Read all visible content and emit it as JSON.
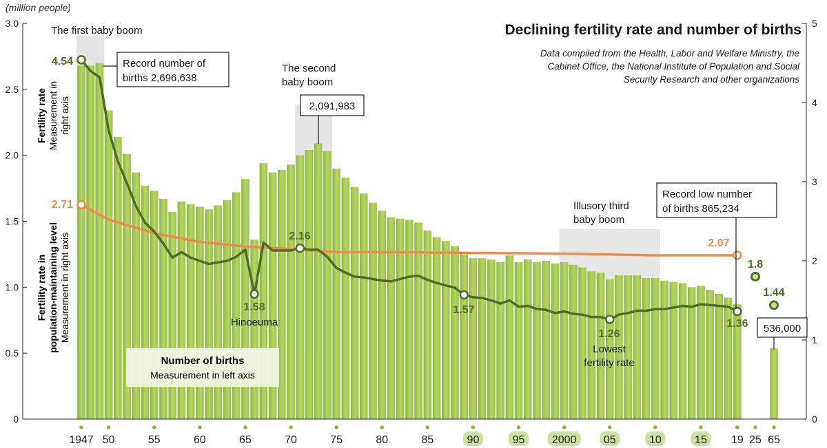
{
  "chart_data": {
    "type": "bar",
    "title": "Declining fertility rate and number of births",
    "source": "Data compiled from the Health, Labor and Welfare Ministry, the Cabinet Office, the National Institute of Population and Social Security Research and other organizations",
    "left_axis": {
      "unit": "(million people)",
      "ticks": [
        "0",
        "0.5",
        "1.0",
        "1.5",
        "2.0",
        "2.5",
        "3.0"
      ],
      "range": [
        0,
        3.0
      ]
    },
    "right_axis": {
      "ticks": [
        "0",
        "1",
        "2",
        "3",
        "4",
        "5"
      ],
      "range": [
        0,
        5
      ]
    },
    "left_labels": {
      "fertility_bold": "Fertility rate",
      "fertility_sub1": "Measurement in",
      "fertility_sub2": "right axis",
      "maint_bold1": "Fertility rate in",
      "maint_bold2": "population-maintaining level",
      "maint_sub": "Measurement in right axis"
    },
    "x_tick_labels": [
      {
        "year": 1947,
        "label": "1947",
        "highlight": false
      },
      {
        "year": 1950,
        "label": "50",
        "highlight": false
      },
      {
        "year": 1955,
        "label": "55",
        "highlight": false
      },
      {
        "year": 1960,
        "label": "60",
        "highlight": false
      },
      {
        "year": 1965,
        "label": "65",
        "highlight": false
      },
      {
        "year": 1970,
        "label": "70",
        "highlight": false
      },
      {
        "year": 1975,
        "label": "75",
        "highlight": false
      },
      {
        "year": 1980,
        "label": "80",
        "highlight": false
      },
      {
        "year": 1985,
        "label": "85",
        "highlight": false
      },
      {
        "year": 1990,
        "label": "90",
        "highlight": true
      },
      {
        "year": 1995,
        "label": "95",
        "highlight": true
      },
      {
        "year": 2000,
        "label": "2000",
        "highlight": true
      },
      {
        "year": 2005,
        "label": "05",
        "highlight": true
      },
      {
        "year": 2010,
        "label": "10",
        "highlight": true
      },
      {
        "year": 2015,
        "label": "15",
        "highlight": true
      },
      {
        "year": 2019,
        "label": "19",
        "highlight": false
      },
      {
        "year": 2025,
        "label": "25",
        "highlight": false
      },
      {
        "year": 2065,
        "label": "65",
        "highlight": false
      }
    ],
    "births": {
      "name": "Number of births",
      "subtitle": "Measurement in left axis",
      "years": [
        1947,
        1948,
        1949,
        1950,
        1951,
        1952,
        1953,
        1954,
        1955,
        1956,
        1957,
        1958,
        1959,
        1960,
        1961,
        1962,
        1963,
        1964,
        1965,
        1966,
        1967,
        1968,
        1969,
        1970,
        1971,
        1972,
        1973,
        1974,
        1975,
        1976,
        1977,
        1978,
        1979,
        1980,
        1981,
        1982,
        1983,
        1984,
        1985,
        1986,
        1987,
        1988,
        1989,
        1990,
        1991,
        1992,
        1993,
        1994,
        1995,
        1996,
        1997,
        1998,
        1999,
        2000,
        2001,
        2002,
        2003,
        2004,
        2005,
        2006,
        2007,
        2008,
        2009,
        2010,
        2011,
        2012,
        2013,
        2014,
        2015,
        2016,
        2017,
        2018,
        2019
      ],
      "values": [
        2.68,
        2.68,
        2.7,
        2.34,
        2.14,
        2.01,
        1.87,
        1.77,
        1.73,
        1.67,
        1.57,
        1.65,
        1.63,
        1.61,
        1.59,
        1.62,
        1.66,
        1.72,
        1.82,
        1.36,
        1.94,
        1.87,
        1.89,
        1.93,
        2.0,
        2.04,
        2.09,
        2.03,
        1.9,
        1.83,
        1.76,
        1.71,
        1.64,
        1.58,
        1.53,
        1.52,
        1.51,
        1.49,
        1.43,
        1.38,
        1.35,
        1.31,
        1.25,
        1.22,
        1.22,
        1.21,
        1.19,
        1.24,
        1.19,
        1.21,
        1.19,
        1.2,
        1.18,
        1.19,
        1.17,
        1.15,
        1.12,
        1.11,
        1.06,
        1.09,
        1.09,
        1.09,
        1.07,
        1.07,
        1.05,
        1.04,
        1.03,
        1.0,
        1.01,
        0.98,
        0.95,
        0.92,
        0.87
      ],
      "projection": {
        "year": 2065,
        "value": 0.536
      }
    },
    "fertility_rate": {
      "name": "Fertility rate",
      "years": [
        1947,
        1948,
        1949,
        1950,
        1951,
        1952,
        1953,
        1954,
        1955,
        1956,
        1957,
        1958,
        1959,
        1960,
        1961,
        1962,
        1963,
        1964,
        1965,
        1966,
        1967,
        1968,
        1969,
        1970,
        1971,
        1972,
        1973,
        1974,
        1975,
        1976,
        1977,
        1978,
        1979,
        1980,
        1981,
        1982,
        1983,
        1984,
        1985,
        1986,
        1987,
        1988,
        1989,
        1990,
        1991,
        1992,
        1993,
        1994,
        1995,
        1996,
        1997,
        1998,
        1999,
        2000,
        2001,
        2002,
        2003,
        2004,
        2005,
        2006,
        2007,
        2008,
        2009,
        2010,
        2011,
        2012,
        2013,
        2014,
        2015,
        2016,
        2017,
        2018,
        2019
      ],
      "values": [
        4.54,
        4.4,
        4.32,
        3.65,
        3.26,
        2.98,
        2.69,
        2.48,
        2.37,
        2.22,
        2.04,
        2.11,
        2.04,
        2.0,
        1.96,
        1.98,
        2.0,
        2.05,
        2.14,
        1.58,
        2.23,
        2.13,
        2.13,
        2.13,
        2.16,
        2.14,
        2.14,
        2.05,
        1.91,
        1.85,
        1.8,
        1.79,
        1.77,
        1.75,
        1.74,
        1.77,
        1.8,
        1.81,
        1.76,
        1.72,
        1.69,
        1.66,
        1.57,
        1.54,
        1.53,
        1.5,
        1.46,
        1.5,
        1.42,
        1.43,
        1.39,
        1.38,
        1.34,
        1.36,
        1.33,
        1.32,
        1.29,
        1.29,
        1.26,
        1.32,
        1.34,
        1.37,
        1.37,
        1.39,
        1.39,
        1.41,
        1.43,
        1.42,
        1.45,
        1.44,
        1.43,
        1.42,
        1.36
      ],
      "projections": [
        {
          "year": 2025,
          "value": 1.8
        },
        {
          "year": 2065,
          "value": 1.44
        }
      ]
    },
    "maintenance_rate": {
      "name": "Fertility rate in population-maintaining level",
      "years": [
        1947,
        1950,
        1955,
        1960,
        1965,
        1970,
        1975,
        1980,
        1990,
        2000,
        2010,
        2019
      ],
      "values": [
        2.71,
        2.52,
        2.35,
        2.24,
        2.18,
        2.15,
        2.11,
        2.11,
        2.1,
        2.09,
        2.07,
        2.07
      ]
    },
    "annotations": {
      "first_boom": "The first baby boom",
      "record_births": [
        "Record number of",
        "births 2,696,638"
      ],
      "second_boom": [
        "The second",
        "baby boom"
      ],
      "second_boom_value": "2,091,983",
      "illusory": [
        "Illusory third",
        "baby boom"
      ],
      "record_low": [
        "Record low number",
        "of births 865,234"
      ],
      "proj_births": "536,000",
      "hinoeuma": "Hinoeuma",
      "lowest": [
        "Lowest",
        "fertility rate"
      ],
      "point_labels": {
        "f1947": "4.54",
        "m1947": "2.71",
        "f1966": "1.58",
        "f1971": "2.16",
        "f1989": "1.57",
        "f2005": "1.26",
        "f2019": "1.36",
        "m2019": "2.07",
        "p2025": "1.8",
        "p2065": "1.44"
      }
    },
    "colors": {
      "bar": "#9cc24a",
      "bar_light": "#c3dc7e",
      "fertility_line": "#4f6e23",
      "maintenance_line": "#ef8a4f",
      "shade": "#d3d3d3",
      "label_green": "#4f6e23",
      "label_orange": "#ef8a4f",
      "highlight_tick": "#cbe2a0",
      "tick_dot": "#8fb53c"
    }
  }
}
